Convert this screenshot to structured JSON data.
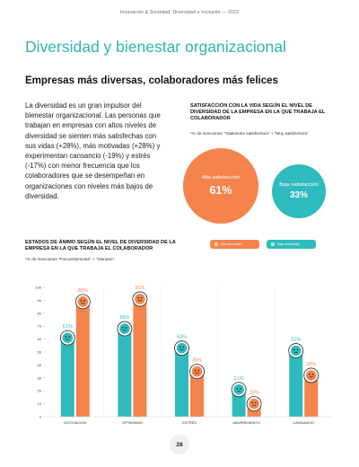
{
  "header": "Innovación & Sociedad: Diversidad e Inclusión — 2022",
  "main_title": "Diversidad y bienestar organizacional",
  "subtitle": "Empresas más diversas, colaboradores más felices",
  "body_text": "La diversidad es un gran impulsor del bienestar organizacional. Las personas que trabajan en empresas con altos niveles de diversidad se sienten más satisfechas con sus vidas (+28%), más motivadas (+28%) y experimentan cansancio (-19%) y estrés (-17%) con menor frecuencia que los colaboradores que se desempeñan en organizaciones con niveles más bajos de diversidad.",
  "satisfaction": {
    "title": "SATISFACCIÓN CON LA VIDA SEGÚN EL NIVEL DE DIVERSIDAD DE LA EMPRESA EN LA QUE TRABAJA EL COLABORADOR",
    "note": "*% de menciones \"Totalmente satisfecho/a\" + \"Muy satisfecho/a\".",
    "high": {
      "label": "Alta satisfacción",
      "value": "61%",
      "value_num": 61,
      "color": "#f4834c"
    },
    "low": {
      "label": "Baja satisfacción",
      "value": "33%",
      "value_num": 33,
      "color": "#2fbbbd"
    }
  },
  "mood_chart": {
    "title": "ESTADOS DE ÁNIMO SEGÚN EL NIVEL DE DIVERSIDAD DE LA EMPRESA EN LA QUE TRABAJA EL COLABORADOR",
    "note": "*% de menciones \"Frecuentemente\" + \"Siempre\".",
    "legend": [
      {
        "label": "Alta diversidad",
        "color": "#f4834c"
      },
      {
        "label": "Baja diversidad",
        "color": "#2fbbbd"
      }
    ]
  },
  "chart_data": {
    "type": "bar",
    "categories": [
      "MOTIVACIÓN",
      "OPTIMISMO",
      "ESTRÉS",
      "ABURRIMIENTO",
      "CANSANCIO"
    ],
    "series": [
      {
        "name": "Baja diversidad",
        "color": "#2fbbbd",
        "values": [
          61,
          68,
          53,
          21,
          51
        ],
        "labels": [
          "61%",
          "68%",
          "53%",
          "21%",
          "51%"
        ]
      },
      {
        "name": "Alta diversidad",
        "color": "#f4834c",
        "values": [
          89,
          91,
          35,
          10,
          32
        ],
        "labels": [
          "89%",
          "91%",
          "35%",
          "10%",
          "32%"
        ]
      }
    ],
    "yticks": [
      0,
      10,
      20,
      30,
      40,
      50,
      60,
      70,
      80,
      90,
      100
    ],
    "ylim": [
      0,
      100
    ],
    "grid": false
  },
  "page_number": "28"
}
